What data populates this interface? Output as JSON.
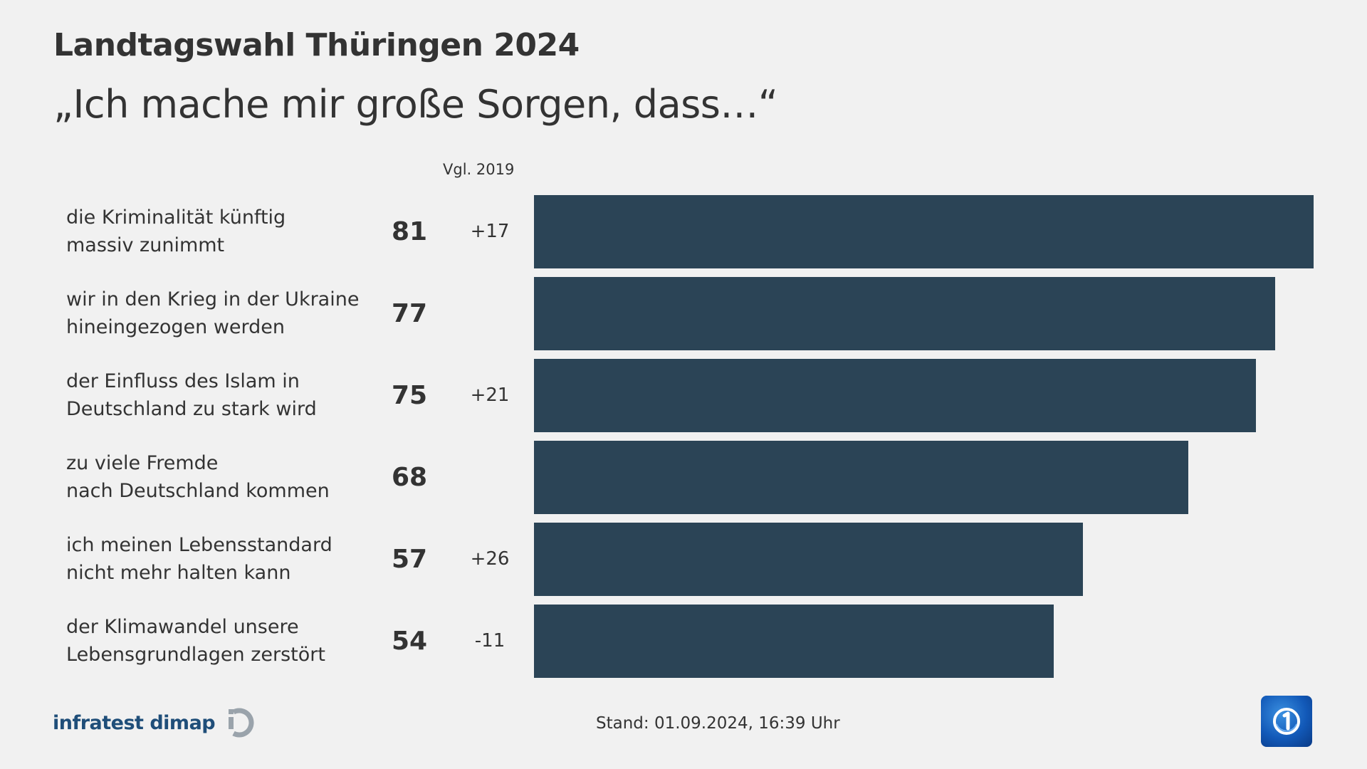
{
  "header": {
    "title": "Landtagswahl Thüringen 2024",
    "subtitle": "„Ich mache mir große Sorgen, dass…“"
  },
  "compare_label": "Vgl. 2019",
  "chart_data": {
    "type": "bar",
    "orientation": "horizontal",
    "categories": [
      [
        "die Kriminalität künftig",
        "massiv zunimmt"
      ],
      [
        "wir in den Krieg in der Ukraine",
        "hineingezogen werden"
      ],
      [
        "der Einfluss des Islam in",
        "Deutschland zu stark wird"
      ],
      [
        "zu viele Fremde",
        "nach Deutschland kommen"
      ],
      [
        "ich meinen Lebensstandard",
        "nicht mehr halten kann"
      ],
      [
        "der Klimawandel unsere",
        "Lebensgrundlagen zerstört"
      ]
    ],
    "values": [
      81,
      77,
      75,
      68,
      57,
      54
    ],
    "changes": [
      "+17",
      "",
      "+21",
      "",
      "+26",
      "-11"
    ],
    "xlim": [
      0,
      81
    ],
    "bar_color": "#2b4456"
  },
  "footer": {
    "source": "infratest dimap",
    "stand": "Stand:  01.09.2024, 16:39 Uhr"
  },
  "colors": {
    "background": "#f1f1f1",
    "bar": "#2b4456",
    "brand": "#1f4e79",
    "text": "#333333"
  }
}
